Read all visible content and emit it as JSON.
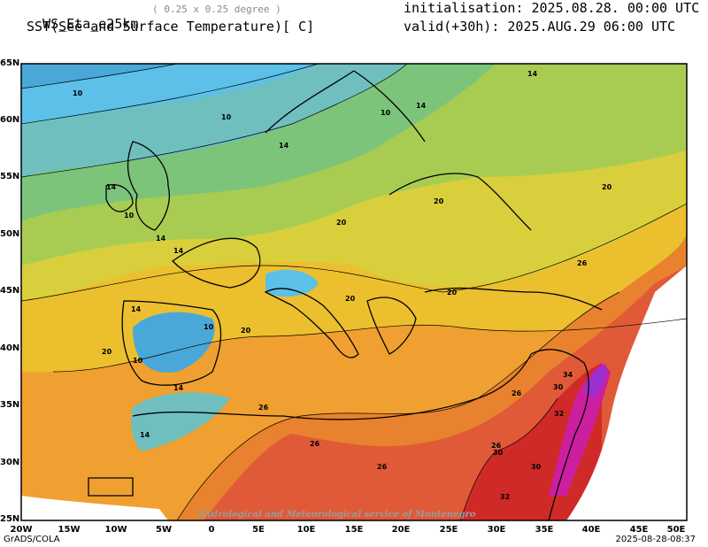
{
  "header": {
    "model": "WS_Eta_e25km",
    "resolution": "( 0.25 x 0.25 degree )",
    "field": "SST(See and Surface Temperature)[ C]",
    "init_label": "initialisation: 2025.08.28. 00:00 UTC",
    "valid_label": "valid(+30h): 2025.AUG.29 06:00 UTC"
  },
  "axes": {
    "lat_labels": [
      "65N",
      "60N",
      "55N",
      "50N",
      "45N",
      "40N",
      "35N",
      "30N",
      "25N"
    ],
    "lon_labels": [
      "20W",
      "15W",
      "10W",
      "5W",
      "0",
      "5E",
      "10E",
      "15E",
      "20E",
      "25E",
      "30E",
      "35E",
      "40E",
      "45E",
      "50E"
    ]
  },
  "contour_labels": [
    "10",
    "14",
    "20",
    "26",
    "30",
    "32",
    "34"
  ],
  "watermark": "Hydrological and Meteorological service of Montenegro",
  "footer": {
    "left": "GrADS/COLA",
    "right": "2025-08-28-08:37"
  },
  "colors": {
    "t10": "#4aa8d8",
    "t12": "#5cc0e8",
    "t14": "#6fbfbf",
    "t16": "#7cc47a",
    "t18": "#a8cc52",
    "t20": "#d9cf3c",
    "t22": "#ecbf2e",
    "t24": "#f0a030",
    "t26": "#e8822e",
    "t28": "#e05a38",
    "t30": "#d02a28",
    "t32": "#cc1fa0",
    "t34": "#9b2fd0"
  }
}
